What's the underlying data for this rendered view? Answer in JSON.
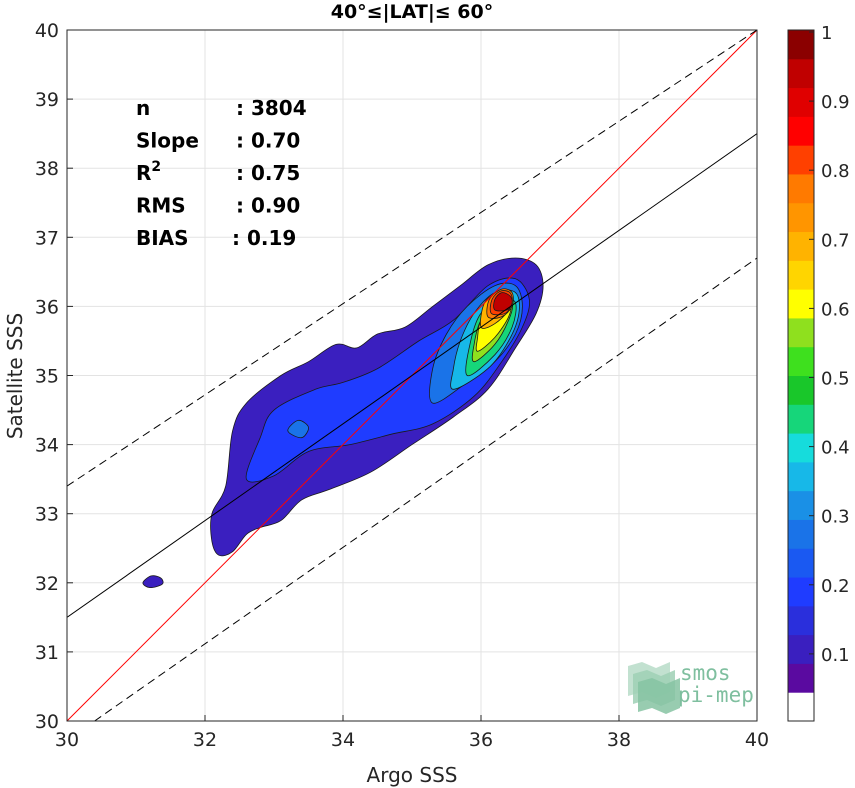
{
  "chart_data": {
    "type": "heatmap",
    "title": "40°≤|LAT|≤ 60°",
    "xlabel": "Argo SSS",
    "ylabel": "Satellite SSS",
    "xlim": [
      30,
      40
    ],
    "ylim": [
      30,
      40
    ],
    "xticks": [
      "30",
      "32",
      "34",
      "36",
      "38",
      "40"
    ],
    "yticks": [
      "30",
      "31",
      "32",
      "33",
      "34",
      "35",
      "36",
      "37",
      "38",
      "39",
      "40"
    ],
    "grid": true,
    "stats": [
      {
        "label": "n",
        "sep": ":",
        "value": "3804"
      },
      {
        "label": "Slope",
        "sep": ":",
        "value": "0.70"
      },
      {
        "label": "R",
        "sup": "2",
        "sep": ":",
        "value": "0.75"
      },
      {
        "label": "RMS",
        "sep": ":",
        "value": "0.90"
      },
      {
        "label": "BIAS",
        "sep": ":",
        "value": "0.19"
      }
    ],
    "lines": [
      {
        "name": "identity",
        "color": "#ff0000",
        "style": "solid",
        "points": [
          [
            30,
            30
          ],
          [
            40,
            40
          ]
        ]
      },
      {
        "name": "regression",
        "color": "#000000",
        "style": "solid",
        "points": [
          [
            30,
            31.5
          ],
          [
            40,
            38.5
          ]
        ]
      },
      {
        "name": "upper-bound",
        "color": "#000000",
        "style": "dashed",
        "points": [
          [
            30,
            33.4
          ],
          [
            40,
            40
          ]
        ]
      },
      {
        "name": "lower-bound",
        "color": "#000000",
        "style": "dashed",
        "points": [
          [
            30.4,
            30
          ],
          [
            40,
            36.7
          ]
        ]
      }
    ],
    "density_contours": [
      {
        "level": 0.05,
        "color": "#3a1fbf",
        "points": [
          [
            32.1,
            32.6
          ],
          [
            32.2,
            32.4
          ],
          [
            32.4,
            32.45
          ],
          [
            32.6,
            32.7
          ],
          [
            32.8,
            32.8
          ],
          [
            33.1,
            32.9
          ],
          [
            33.4,
            33.2
          ],
          [
            33.8,
            33.35
          ],
          [
            34.4,
            33.6
          ],
          [
            35.0,
            34.0
          ],
          [
            35.6,
            34.4
          ],
          [
            36.1,
            34.8
          ],
          [
            36.5,
            35.4
          ],
          [
            36.8,
            35.9
          ],
          [
            36.9,
            36.3
          ],
          [
            36.8,
            36.6
          ],
          [
            36.5,
            36.7
          ],
          [
            36.1,
            36.6
          ],
          [
            35.7,
            36.3
          ],
          [
            35.3,
            36.0
          ],
          [
            34.9,
            35.7
          ],
          [
            34.5,
            35.6
          ],
          [
            34.2,
            35.4
          ],
          [
            33.9,
            35.45
          ],
          [
            33.5,
            35.2
          ],
          [
            33.1,
            35.0
          ],
          [
            32.6,
            34.6
          ],
          [
            32.4,
            34.2
          ],
          [
            32.3,
            33.4
          ],
          [
            32.1,
            33.0
          ]
        ]
      },
      {
        "level": 0.05,
        "color": "#3a1fbf",
        "points": [
          [
            31.1,
            32.0
          ],
          [
            31.2,
            31.93
          ],
          [
            31.38,
            31.98
          ],
          [
            31.36,
            32.07
          ],
          [
            31.22,
            32.1
          ]
        ]
      },
      {
        "level": 0.15,
        "color": "#1f3cff",
        "points": [
          [
            32.6,
            33.5
          ],
          [
            33.0,
            33.55
          ],
          [
            33.5,
            33.9
          ],
          [
            34.1,
            34.0
          ],
          [
            34.7,
            34.15
          ],
          [
            35.3,
            34.3
          ],
          [
            35.9,
            34.7
          ],
          [
            36.3,
            35.2
          ],
          [
            36.6,
            35.7
          ],
          [
            36.7,
            36.1
          ],
          [
            36.5,
            36.4
          ],
          [
            36.1,
            36.3
          ],
          [
            35.6,
            35.8
          ],
          [
            35.1,
            35.5
          ],
          [
            34.5,
            35.1
          ],
          [
            34.0,
            34.9
          ],
          [
            33.6,
            34.8
          ],
          [
            33.0,
            34.5
          ],
          [
            32.8,
            34.1
          ]
        ]
      },
      {
        "level": 0.25,
        "color": "#1a73e8",
        "points": [
          [
            33.2,
            34.2
          ],
          [
            33.4,
            34.1
          ],
          [
            33.5,
            34.25
          ],
          [
            33.35,
            34.35
          ]
        ]
      },
      {
        "level": 0.25,
        "color": "#1a73e8",
        "points": [
          [
            35.3,
            34.6
          ],
          [
            35.8,
            34.9
          ],
          [
            36.2,
            35.2
          ],
          [
            36.5,
            35.6
          ],
          [
            36.6,
            36.0
          ],
          [
            36.5,
            36.3
          ],
          [
            36.2,
            36.3
          ],
          [
            35.8,
            36.0
          ],
          [
            35.5,
            35.6
          ],
          [
            35.3,
            35.1
          ]
        ]
      },
      {
        "level": 0.35,
        "color": "#17b8e8",
        "points": [
          [
            35.6,
            34.8
          ],
          [
            36.1,
            35.1
          ],
          [
            36.4,
            35.5
          ],
          [
            36.55,
            35.9
          ],
          [
            36.5,
            36.2
          ],
          [
            36.2,
            36.2
          ],
          [
            35.9,
            35.9
          ],
          [
            35.7,
            35.5
          ],
          [
            35.6,
            35.1
          ]
        ]
      },
      {
        "level": 0.45,
        "color": "#16d67a",
        "points": [
          [
            35.8,
            35.0
          ],
          [
            36.2,
            35.3
          ],
          [
            36.45,
            35.7
          ],
          [
            36.5,
            36.05
          ],
          [
            36.3,
            36.1
          ],
          [
            36.0,
            35.9
          ],
          [
            35.85,
            35.5
          ]
        ]
      },
      {
        "level": 0.55,
        "color": "#8fe01e",
        "points": [
          [
            35.9,
            35.2
          ],
          [
            36.2,
            35.45
          ],
          [
            36.4,
            35.8
          ],
          [
            36.45,
            36.05
          ],
          [
            36.25,
            36.05
          ],
          [
            36.0,
            35.8
          ],
          [
            35.9,
            35.45
          ]
        ]
      },
      {
        "level": 0.6,
        "color": "#ffff00",
        "points": [
          [
            35.95,
            35.35
          ],
          [
            36.2,
            35.55
          ],
          [
            36.4,
            35.85
          ],
          [
            36.42,
            36.05
          ],
          [
            36.2,
            36.05
          ],
          [
            36.0,
            35.8
          ],
          [
            35.95,
            35.55
          ]
        ]
      },
      {
        "level": 0.7,
        "color": "#ffb300",
        "points": [
          [
            36.0,
            35.7
          ],
          [
            36.2,
            35.75
          ],
          [
            36.4,
            35.95
          ],
          [
            36.42,
            36.15
          ],
          [
            36.25,
            36.2
          ],
          [
            36.05,
            36.05
          ]
        ]
      },
      {
        "level": 0.8,
        "color": "#ff7a00",
        "points": [
          [
            36.1,
            35.85
          ],
          [
            36.3,
            35.85
          ],
          [
            36.45,
            36.0
          ],
          [
            36.45,
            36.2
          ],
          [
            36.3,
            36.25
          ],
          [
            36.12,
            36.1
          ]
        ]
      },
      {
        "level": 0.85,
        "color": "#ff4000",
        "points": [
          [
            36.15,
            35.9
          ],
          [
            36.35,
            35.9
          ],
          [
            36.45,
            36.05
          ],
          [
            36.42,
            36.2
          ],
          [
            36.28,
            36.22
          ],
          [
            36.16,
            36.1
          ]
        ]
      },
      {
        "level": 0.95,
        "color": "#c00000",
        "points": [
          [
            36.2,
            35.95
          ],
          [
            36.38,
            35.95
          ],
          [
            36.45,
            36.05
          ],
          [
            36.42,
            36.15
          ],
          [
            36.3,
            36.2
          ],
          [
            36.2,
            36.1
          ]
        ]
      }
    ],
    "colorbar": {
      "range": [
        0,
        1
      ],
      "ticks": [
        "0.1",
        "0.2",
        "0.3",
        "0.4",
        "0.5",
        "0.6",
        "0.7",
        "0.8",
        "0.9",
        "1"
      ],
      "colors": [
        "#ffffff",
        "#5a0aa0",
        "#3a1fbf",
        "#2a2fdc",
        "#1f3cff",
        "#1a59f2",
        "#1a73e8",
        "#1a90e6",
        "#17b8e8",
        "#16dcdc",
        "#16d67a",
        "#19c72a",
        "#3ee01e",
        "#8fe01e",
        "#ffff00",
        "#ffd500",
        "#ffb300",
        "#ff9500",
        "#ff7a00",
        "#ff4000",
        "#ff0000",
        "#e00000",
        "#c00000",
        "#8b0000"
      ]
    },
    "logo": {
      "line1": "smos",
      "line2": "pi-mep"
    }
  }
}
